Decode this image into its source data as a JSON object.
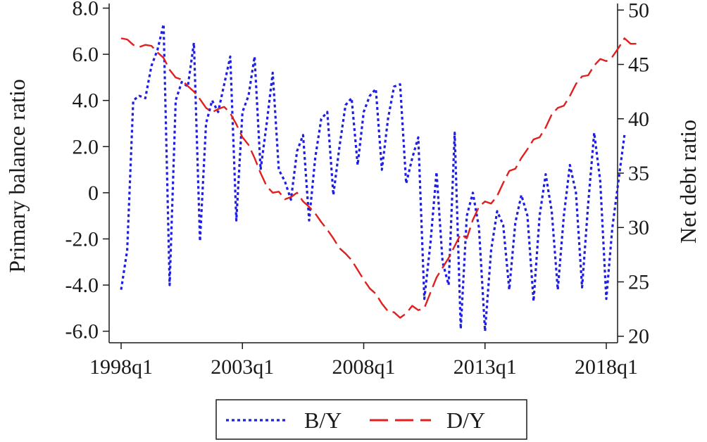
{
  "chart_data": {
    "type": "line",
    "title": "",
    "xlabel": "",
    "ylabel_left": "Primary balance ratio",
    "ylabel_right": "Net debt ratio",
    "x_ticks": [
      "1998q1",
      "2003q1",
      "2008q1",
      "2013q1",
      "2018q1"
    ],
    "y_left_ticks": [
      "8.0",
      "6.0",
      "4.0",
      "2.0",
      "0",
      "-2.0",
      "-4.0",
      "-6.0"
    ],
    "y_right_ticks": [
      "50",
      "45",
      "40",
      "35",
      "30",
      "25",
      "20"
    ],
    "ylim_left": [
      -6.5,
      8.2
    ],
    "ylim_right": [
      19.4,
      50.6
    ],
    "legend_position": "bottom",
    "grid": false,
    "series": [
      {
        "name": "B/Y",
        "axis": "left",
        "style": "dotted",
        "color": "#1f1fe0",
        "points": [
          [
            "1998q1",
            -4.2
          ],
          [
            "1998q2",
            -2.5
          ],
          [
            "1998q3",
            4.0
          ],
          [
            "1998q4",
            4.2
          ],
          [
            "1999q1",
            4.1
          ],
          [
            "1999q2",
            5.5
          ],
          [
            "1999q3",
            6.2
          ],
          [
            "1999q4",
            7.3
          ],
          [
            "2000q1",
            -4.0
          ],
          [
            "2000q2",
            4.0
          ],
          [
            "2000q3",
            4.8
          ],
          [
            "2000q4",
            4.6
          ],
          [
            "2001q1",
            6.5
          ],
          [
            "2001q2",
            -2.1
          ],
          [
            "2001q3",
            3.0
          ],
          [
            "2001q4",
            4.0
          ],
          [
            "2002q1",
            3.5
          ],
          [
            "2002q2",
            4.7
          ],
          [
            "2002q3",
            5.9
          ],
          [
            "2002q4",
            -1.2
          ],
          [
            "2003q1",
            3.5
          ],
          [
            "2003q2",
            4.2
          ],
          [
            "2003q3",
            5.9
          ],
          [
            "2003q4",
            1.0
          ],
          [
            "2004q1",
            3.0
          ],
          [
            "2004q2",
            5.2
          ],
          [
            "2004q3",
            1.0
          ],
          [
            "2004q4",
            0.5
          ],
          [
            "2005q1",
            -0.3
          ],
          [
            "2005q2",
            1.8
          ],
          [
            "2005q3",
            2.5
          ],
          [
            "2005q4",
            -1.2
          ],
          [
            "2006q1",
            1.5
          ],
          [
            "2006q2",
            3.2
          ],
          [
            "2006q3",
            3.5
          ],
          [
            "2006q4",
            -0.1
          ],
          [
            "2007q1",
            2.0
          ],
          [
            "2007q2",
            3.8
          ],
          [
            "2007q3",
            4.1
          ],
          [
            "2007q4",
            1.2
          ],
          [
            "2008q1",
            3.5
          ],
          [
            "2008q2",
            4.2
          ],
          [
            "2008q3",
            4.5
          ],
          [
            "2008q4",
            1.0
          ],
          [
            "2009q1",
            3.2
          ],
          [
            "2009q2",
            4.6
          ],
          [
            "2009q3",
            4.7
          ],
          [
            "2009q4",
            0.4
          ],
          [
            "2010q1",
            1.5
          ],
          [
            "2010q2",
            2.4
          ],
          [
            "2010q3",
            -4.6
          ],
          [
            "2010q4",
            -2.2
          ],
          [
            "2011q1",
            0.9
          ],
          [
            "2011q2",
            -3.0
          ],
          [
            "2011q3",
            -4.0
          ],
          [
            "2011q4",
            2.6
          ],
          [
            "2012q1",
            -5.9
          ],
          [
            "2012q2",
            -1.0
          ],
          [
            "2012q3",
            0.0
          ],
          [
            "2012q4",
            -1.5
          ],
          [
            "2013q1",
            -6.0
          ],
          [
            "2013q2",
            -2.5
          ],
          [
            "2013q3",
            -0.8
          ],
          [
            "2013q4",
            -1.4
          ],
          [
            "2014q1",
            -4.2
          ],
          [
            "2014q2",
            -1.3
          ],
          [
            "2014q3",
            -0.1
          ],
          [
            "2014q4",
            -1.0
          ],
          [
            "2015q1",
            -4.7
          ],
          [
            "2015q2",
            -1.0
          ],
          [
            "2015q3",
            0.8
          ],
          [
            "2015q4",
            -0.8
          ],
          [
            "2016q1",
            -4.2
          ],
          [
            "2016q2",
            -1.0
          ],
          [
            "2016q3",
            1.2
          ],
          [
            "2016q4",
            0.0
          ],
          [
            "2017q1",
            -4.1
          ],
          [
            "2017q2",
            -0.5
          ],
          [
            "2017q3",
            2.6
          ],
          [
            "2017q4",
            0.5
          ],
          [
            "2018q1",
            -4.6
          ],
          [
            "2018q2",
            -1.5
          ],
          [
            "2018q3",
            0.5
          ],
          [
            "2018q4",
            2.5
          ]
        ]
      },
      {
        "name": "D/Y",
        "axis": "right",
        "style": "dashed",
        "color": "#e01f1f",
        "points": [
          [
            "1998q1",
            47.4
          ],
          [
            "1998q2",
            47.3
          ],
          [
            "1998q3",
            46.8
          ],
          [
            "1998q4",
            46.6
          ],
          [
            "1999q1",
            46.8
          ],
          [
            "1999q2",
            46.7
          ],
          [
            "1999q3",
            46.1
          ],
          [
            "1999q4",
            45.6
          ],
          [
            "2000q1",
            44.5
          ],
          [
            "2000q2",
            43.8
          ],
          [
            "2000q3",
            43.6
          ],
          [
            "2000q4",
            43.0
          ],
          [
            "2001q1",
            42.5
          ],
          [
            "2001q2",
            41.8
          ],
          [
            "2001q3",
            41.0
          ],
          [
            "2001q4",
            40.6
          ],
          [
            "2002q1",
            40.9
          ],
          [
            "2002q2",
            41.1
          ],
          [
            "2002q3",
            40.5
          ],
          [
            "2002q4",
            39.5
          ],
          [
            "2003q1",
            38.3
          ],
          [
            "2003q2",
            37.6
          ],
          [
            "2003q3",
            36.4
          ],
          [
            "2003q4",
            35.0
          ],
          [
            "2004q1",
            33.8
          ],
          [
            "2004q2",
            33.2
          ],
          [
            "2004q3",
            33.3
          ],
          [
            "2004q4",
            32.6
          ],
          [
            "2005q1",
            32.8
          ],
          [
            "2005q2",
            33.2
          ],
          [
            "2005q3",
            32.4
          ],
          [
            "2005q4",
            31.9
          ],
          [
            "2006q1",
            31.3
          ],
          [
            "2006q2",
            30.5
          ],
          [
            "2006q3",
            29.8
          ],
          [
            "2006q4",
            29.0
          ],
          [
            "2007q1",
            28.1
          ],
          [
            "2007q2",
            27.6
          ],
          [
            "2007q3",
            27.0
          ],
          [
            "2007q4",
            26.1
          ],
          [
            "2008q1",
            25.2
          ],
          [
            "2008q2",
            24.4
          ],
          [
            "2008q3",
            23.9
          ],
          [
            "2008q4",
            23.0
          ],
          [
            "2009q1",
            22.3
          ],
          [
            "2009q2",
            22.2
          ],
          [
            "2009q3",
            21.7
          ],
          [
            "2009q4",
            22.1
          ],
          [
            "2010q1",
            22.8
          ],
          [
            "2010q2",
            22.4
          ],
          [
            "2010q3",
            22.6
          ],
          [
            "2010q4",
            24.0
          ],
          [
            "2011q1",
            25.4
          ],
          [
            "2011q2",
            26.3
          ],
          [
            "2011q3",
            27.2
          ],
          [
            "2011q4",
            28.3
          ],
          [
            "2012q1",
            29.4
          ],
          [
            "2012q2",
            29.0
          ],
          [
            "2012q3",
            30.7
          ],
          [
            "2012q4",
            31.9
          ],
          [
            "2013q1",
            32.4
          ],
          [
            "2013q2",
            32.2
          ],
          [
            "2013q3",
            32.9
          ],
          [
            "2013q4",
            34.1
          ],
          [
            "2014q1",
            35.2
          ],
          [
            "2014q2",
            35.4
          ],
          [
            "2014q3",
            36.4
          ],
          [
            "2014q4",
            37.2
          ],
          [
            "2015q1",
            38.1
          ],
          [
            "2015q2",
            38.3
          ],
          [
            "2015q3",
            39.2
          ],
          [
            "2015q4",
            40.4
          ],
          [
            "2016q1",
            41.0
          ],
          [
            "2016q2",
            41.2
          ],
          [
            "2016q3",
            42.1
          ],
          [
            "2016q4",
            43.2
          ],
          [
            "2017q1",
            43.9
          ],
          [
            "2017q2",
            44.0
          ],
          [
            "2017q3",
            44.9
          ],
          [
            "2017q4",
            45.5
          ],
          [
            "2018q1",
            45.3
          ],
          [
            "2018q2",
            45.7
          ],
          [
            "2018q3",
            46.5
          ],
          [
            "2018q4",
            47.4
          ],
          [
            "2019q1",
            46.9
          ],
          [
            "2019q2",
            46.9
          ]
        ]
      }
    ]
  }
}
